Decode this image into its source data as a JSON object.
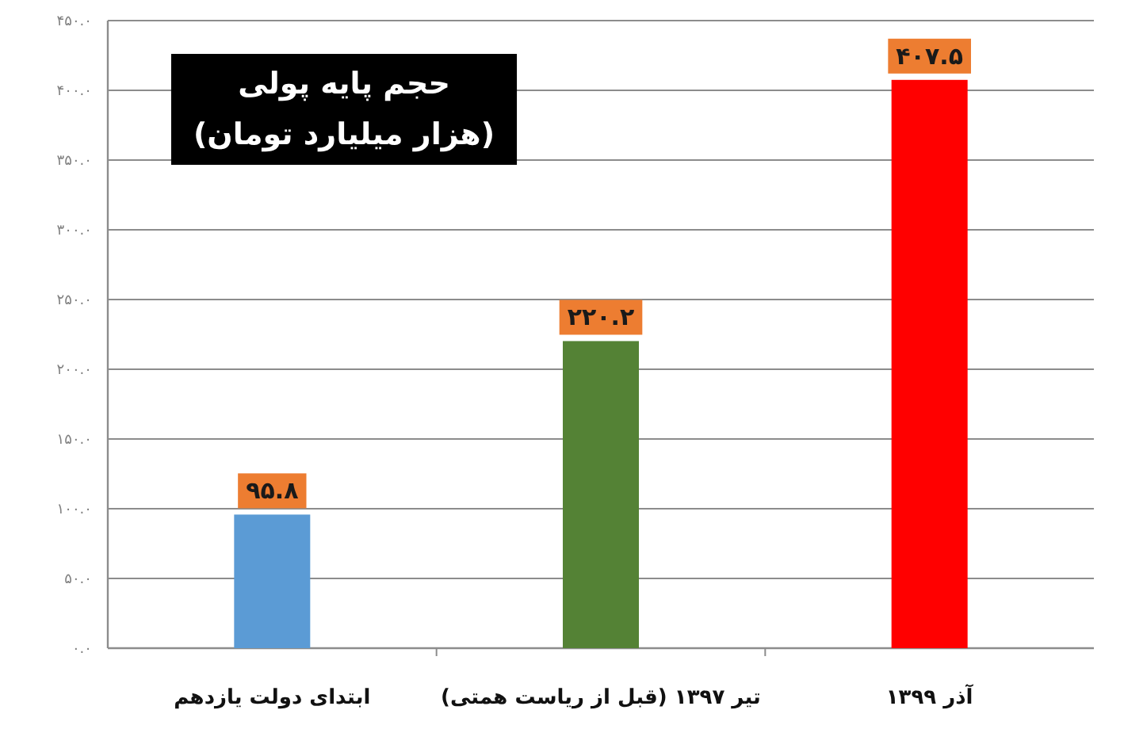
{
  "chart_data": {
    "type": "bar",
    "title": "حجم پایه پولی",
    "subtitle": "(هزار میلیارد تومان)",
    "categories": [
      "ابتدای دولت یازدهم",
      "تیر ۱۳۹۷ (قبل از ریاست همتی)",
      "آذر ۱۳۹۹"
    ],
    "values": [
      95.8,
      220.2,
      407.5
    ],
    "colors": [
      "#5b9bd5",
      "#548235",
      "#ff0000"
    ],
    "value_labels": [
      "۹۵.۸",
      "۲۲۰.۲",
      "۴۰۷.۵"
    ],
    "ylim": [
      0,
      450
    ],
    "yticks": [
      {
        "value": 0,
        "label": "۰.۰"
      },
      {
        "value": 50,
        "label": "۵۰.۰"
      },
      {
        "value": 100,
        "label": "۱۰۰.۰"
      },
      {
        "value": 150,
        "label": "۱۵۰.۰"
      },
      {
        "value": 200,
        "label": "۲۰۰.۰"
      },
      {
        "value": 250,
        "label": "۲۵۰.۰"
      },
      {
        "value": 300,
        "label": "۳۰۰.۰"
      },
      {
        "value": 350,
        "label": "۳۵۰.۰"
      },
      {
        "value": 400,
        "label": "۴۰۰.۰"
      },
      {
        "value": 450,
        "label": "۴۵۰.۰"
      }
    ],
    "grid": "y"
  }
}
